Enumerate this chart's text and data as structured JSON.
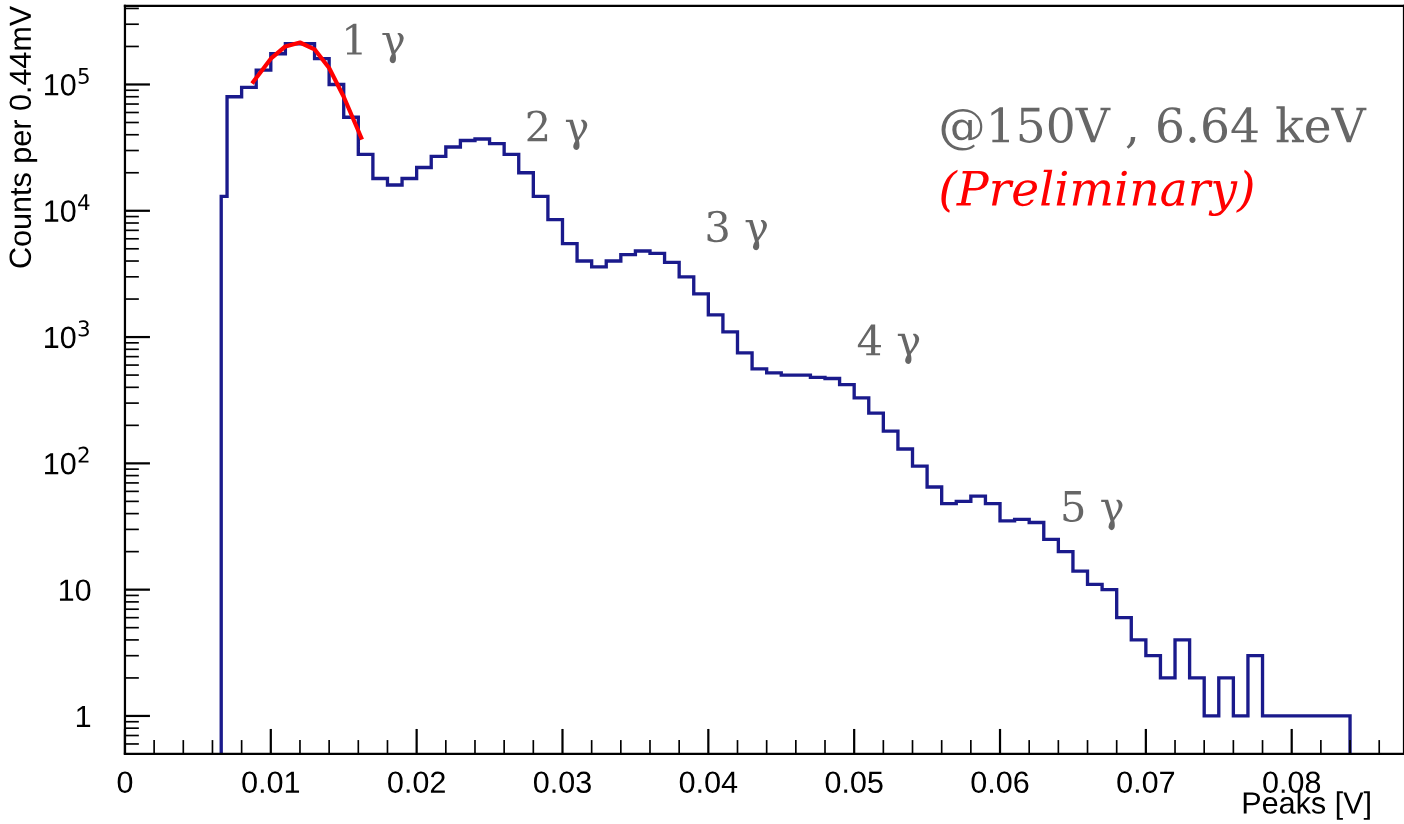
{
  "chart_data": {
    "type": "histogram",
    "xlabel": "Peaks [V]",
    "ylabel": "Counts per 0.44mV",
    "bins": [
      0.0066,
      0.007,
      0.008,
      0.009,
      0.01,
      0.011,
      0.012,
      0.013,
      0.014,
      0.015,
      0.016,
      0.017,
      0.018,
      0.019,
      0.02,
      0.021,
      0.022,
      0.023,
      0.024,
      0.025,
      0.026,
      0.027,
      0.028,
      0.029,
      0.03,
      0.031,
      0.032,
      0.033,
      0.034,
      0.035,
      0.036,
      0.037,
      0.038,
      0.039,
      0.04,
      0.041,
      0.042,
      0.043,
      0.044,
      0.045,
      0.046,
      0.047,
      0.048,
      0.049,
      0.05,
      0.051,
      0.052,
      0.053,
      0.054,
      0.055,
      0.056,
      0.057,
      0.058,
      0.059,
      0.06,
      0.061,
      0.062,
      0.063,
      0.064,
      0.065,
      0.066,
      0.067,
      0.068,
      0.069,
      0.07,
      0.071,
      0.072,
      0.073,
      0.074,
      0.075,
      0.076,
      0.077,
      0.078,
      0.079,
      0.08,
      0.081,
      0.082,
      0.083,
      0.084
    ],
    "values": [
      13000,
      80000,
      95000,
      130000,
      175000,
      210000,
      210000,
      160000,
      100000,
      55000,
      28000,
      18000,
      16000,
      18000,
      22000,
      27000,
      32000,
      36000,
      37000,
      34000,
      28000,
      20000,
      13000,
      8500,
      5500,
      4000,
      3600,
      4000,
      4500,
      4800,
      4600,
      3900,
      3000,
      2200,
      1500,
      1100,
      750,
      560,
      520,
      500,
      500,
      480,
      470,
      420,
      330,
      250,
      180,
      130,
      95,
      65,
      48,
      50,
      55,
      48,
      35,
      36,
      34,
      25,
      20,
      14,
      11,
      10,
      6,
      4,
      3,
      2,
      4,
      2,
      1,
      2,
      1,
      3,
      1,
      1,
      1,
      1,
      1,
      1
    ],
    "color": "#1a1a8c",
    "series": [
      {
        "type": "line",
        "color": "#ff0000",
        "x": [
          0.0088,
          0.01,
          0.011,
          0.012,
          0.013,
          0.014,
          0.015,
          0.0162
        ],
        "values": [
          105000,
          160000,
          200000,
          215000,
          190000,
          135000,
          80000,
          38000
        ]
      }
    ],
    "log": "y",
    "xlim": [
      0,
      0.0877
    ],
    "ylim": [
      0.5,
      420000
    ],
    "xticks": [
      0,
      0.01,
      0.02,
      0.03,
      0.04,
      0.05,
      0.06,
      0.07,
      0.08
    ],
    "yticks": [
      {
        "value": 1,
        "label": "1"
      },
      {
        "value": 10,
        "label": "10"
      },
      {
        "value": 100,
        "label": "10$^{2}$"
      },
      {
        "value": 1000,
        "label": "10$^{3}$"
      },
      {
        "value": 10000,
        "label": "10$^{4}$"
      },
      {
        "value": 100000,
        "label": "10$^{5}$"
      }
    ],
    "annotations": [
      "1 γ",
      "2 γ",
      "3 γ",
      "4 γ",
      "5 γ",
      "@150V , 6.64 keV",
      "(Preliminary)"
    ]
  }
}
